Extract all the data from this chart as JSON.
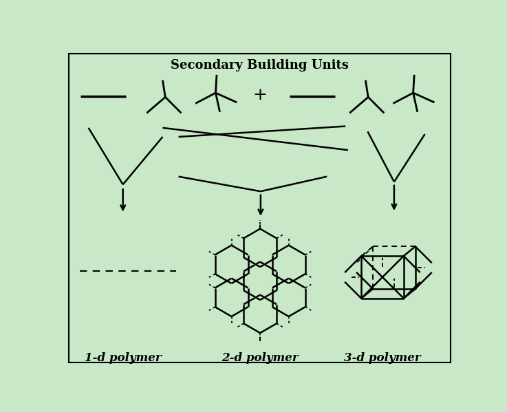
{
  "title": "Secondary Building Units",
  "title_fontsize": 13,
  "labels": [
    "1-d polymer",
    "2-d polymer",
    "3-d polymer"
  ],
  "label_fontsize": 12,
  "bg_color": "#c8e8c8",
  "line_color": "black",
  "border_color": "black"
}
